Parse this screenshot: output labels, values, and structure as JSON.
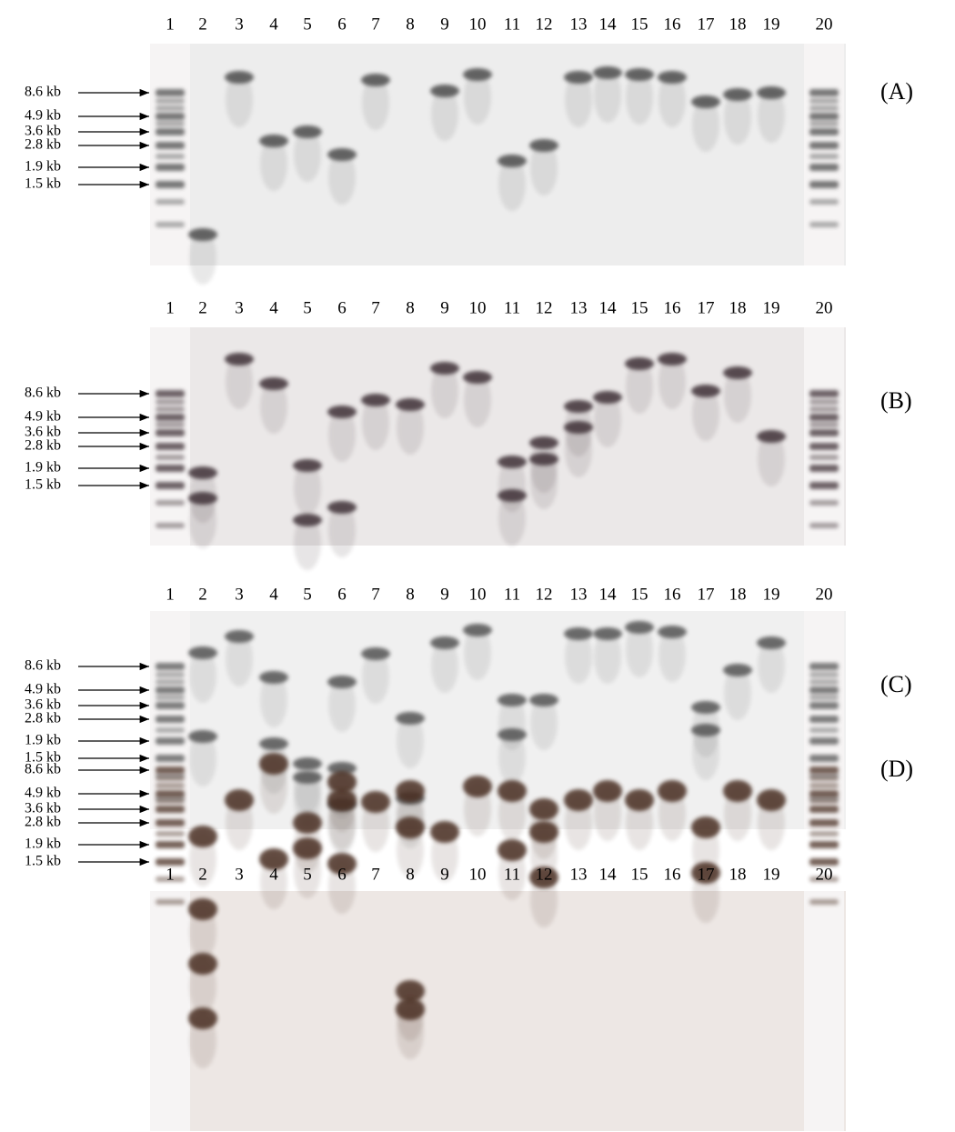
{
  "panels": [
    {
      "label": "(A)",
      "lanes": [
        "1",
        "2",
        "3",
        "4",
        "5",
        "6",
        "7",
        "8",
        "9",
        "10",
        "11",
        "12",
        "13",
        "14",
        "15",
        "16",
        "17",
        "18",
        "19",
        "20"
      ],
      "markers": [
        "8.6 kb",
        "4.9 kb",
        "3.6 kb",
        "2.8 kb",
        "1.9 kb",
        "1.5 kb"
      ]
    },
    {
      "label": "(B)",
      "lanes": [
        "1",
        "2",
        "3",
        "4",
        "5",
        "6",
        "7",
        "8",
        "9",
        "10",
        "11",
        "12",
        "13",
        "14",
        "15",
        "16",
        "17",
        "18",
        "19",
        "20"
      ],
      "markers": [
        "8.6 kb",
        "4.9 kb",
        "3.6 kb",
        "2.8 kb",
        "1.9 kb",
        "1.5 kb"
      ]
    },
    {
      "label": "(C)",
      "lanes": [
        "1",
        "2",
        "3",
        "4",
        "5",
        "6",
        "7",
        "8",
        "9",
        "10",
        "11",
        "12",
        "13",
        "14",
        "15",
        "16",
        "17",
        "18",
        "19",
        "20"
      ],
      "markers": [
        "8.6 kb",
        "4.9 kb",
        "3.6 kb",
        "2.8 kb",
        "1.9 kb",
        "1.5 kb"
      ]
    },
    {
      "label": "(D)",
      "lanes": [
        "1",
        "2",
        "3",
        "4",
        "5",
        "6",
        "7",
        "8",
        "9",
        "10",
        "11",
        "12",
        "13",
        "14",
        "15",
        "16",
        "17",
        "18",
        "19",
        "20"
      ],
      "markers": [
        "8.6 kb",
        "4.9 kb",
        "3.6 kb",
        "2.8 kb",
        "1.9 kb",
        "1.5 kb"
      ]
    }
  ]
}
